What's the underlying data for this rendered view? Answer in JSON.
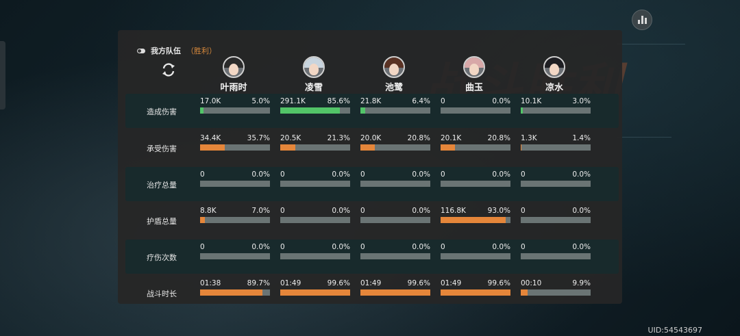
{
  "panel": {
    "title": "我方队伍",
    "result": "（胜利）"
  },
  "uid": "UID:54543697",
  "colors": {
    "green": "#52c468",
    "orange": "#e5863a",
    "track": "#6a7474"
  },
  "heroes": [
    {
      "name": "叶雨时",
      "hair": "#2a2a2a"
    },
    {
      "name": "凌雪",
      "hair": "#c8d4de"
    },
    {
      "name": "池鹭",
      "hair": "#5a3224"
    },
    {
      "name": "曲玉",
      "hair": "#d8a8a8"
    },
    {
      "name": "凉水",
      "hair": "#1e1e22"
    }
  ],
  "rows": [
    {
      "label": "造成伤害",
      "color": "green",
      "cells": [
        {
          "value": "17.0K",
          "pct": "5.0%",
          "ratio": 0.05
        },
        {
          "value": "291.1K",
          "pct": "85.6%",
          "ratio": 0.856
        },
        {
          "value": "21.8K",
          "pct": "6.4%",
          "ratio": 0.064
        },
        {
          "value": "0",
          "pct": "0.0%",
          "ratio": 0
        },
        {
          "value": "10.1K",
          "pct": "3.0%",
          "ratio": 0.03
        }
      ]
    },
    {
      "label": "承受伤害",
      "color": "orange",
      "cells": [
        {
          "value": "34.4K",
          "pct": "35.7%",
          "ratio": 0.357
        },
        {
          "value": "20.5K",
          "pct": "21.3%",
          "ratio": 0.213
        },
        {
          "value": "20.0K",
          "pct": "20.8%",
          "ratio": 0.208
        },
        {
          "value": "20.1K",
          "pct": "20.8%",
          "ratio": 0.208
        },
        {
          "value": "1.3K",
          "pct": "1.4%",
          "ratio": 0.014
        }
      ]
    },
    {
      "label": "治疗总量",
      "color": "green",
      "cells": [
        {
          "value": "0",
          "pct": "0.0%",
          "ratio": 0
        },
        {
          "value": "0",
          "pct": "0.0%",
          "ratio": 0
        },
        {
          "value": "0",
          "pct": "0.0%",
          "ratio": 0
        },
        {
          "value": "0",
          "pct": "0.0%",
          "ratio": 0
        },
        {
          "value": "0",
          "pct": "0.0%",
          "ratio": 0
        }
      ]
    },
    {
      "label": "护盾总量",
      "color": "orange",
      "cells": [
        {
          "value": "8.8K",
          "pct": "7.0%",
          "ratio": 0.07
        },
        {
          "value": "0",
          "pct": "0.0%",
          "ratio": 0
        },
        {
          "value": "0",
          "pct": "0.0%",
          "ratio": 0
        },
        {
          "value": "116.8K",
          "pct": "93.0%",
          "ratio": 0.93
        },
        {
          "value": "0",
          "pct": "0.0%",
          "ratio": 0
        }
      ]
    },
    {
      "label": "疗伤次数",
      "color": "orange",
      "cells": [
        {
          "value": "0",
          "pct": "0.0%",
          "ratio": 0
        },
        {
          "value": "0",
          "pct": "0.0%",
          "ratio": 0
        },
        {
          "value": "0",
          "pct": "0.0%",
          "ratio": 0
        },
        {
          "value": "0",
          "pct": "0.0%",
          "ratio": 0
        },
        {
          "value": "0",
          "pct": "0.0%",
          "ratio": 0
        }
      ]
    },
    {
      "label": "战斗时长",
      "color": "orange",
      "cells": [
        {
          "value": "01:38",
          "pct": "89.7%",
          "ratio": 0.897
        },
        {
          "value": "01:49",
          "pct": "99.6%",
          "ratio": 0.996
        },
        {
          "value": "01:49",
          "pct": "99.6%",
          "ratio": 0.996
        },
        {
          "value": "01:49",
          "pct": "99.6%",
          "ratio": 0.996
        },
        {
          "value": "00:10",
          "pct": "9.9%",
          "ratio": 0.099
        }
      ]
    }
  ]
}
